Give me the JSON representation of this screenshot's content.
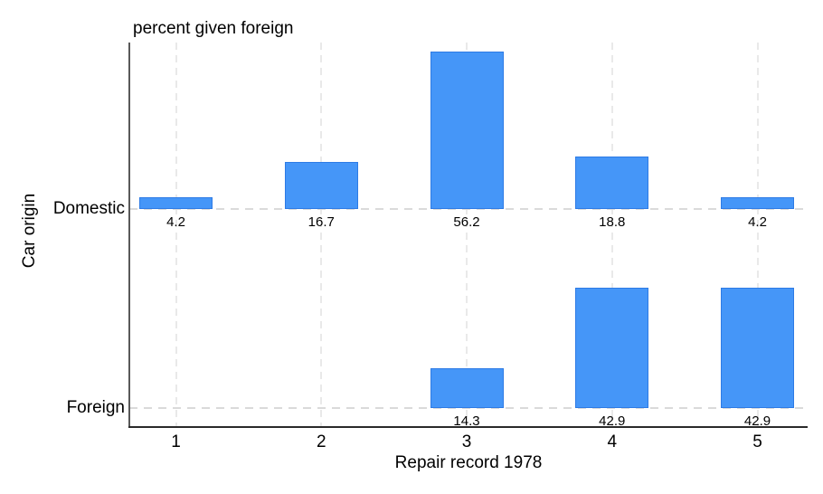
{
  "chart_data": {
    "type": "bar",
    "title": "percent given foreign",
    "xlabel": "Repair record 1978",
    "ylabel": "Car origin",
    "categories": [
      "1",
      "2",
      "3",
      "4",
      "5"
    ],
    "series": [
      {
        "name": "Domestic",
        "values": [
          4.2,
          16.7,
          56.2,
          18.8,
          4.2
        ]
      },
      {
        "name": "Foreign",
        "values": [
          null,
          null,
          14.3,
          42.9,
          42.9
        ]
      }
    ],
    "value_labels_shown": true,
    "unit": "percent",
    "ylim_per_row": [
      0,
      60
    ],
    "grid": "dashed",
    "legend_position": "none",
    "bar_fill_color": "#4596F8",
    "bar_border_color": "#2E7BE5",
    "gridline_color": "#e9e9e9",
    "baseline_dash_color": "#dadada",
    "y_axis_line_color": "#595959",
    "x_axis_line_color": "#2a2a2a",
    "text_color": "#000000",
    "background_color": "#ffffff"
  }
}
